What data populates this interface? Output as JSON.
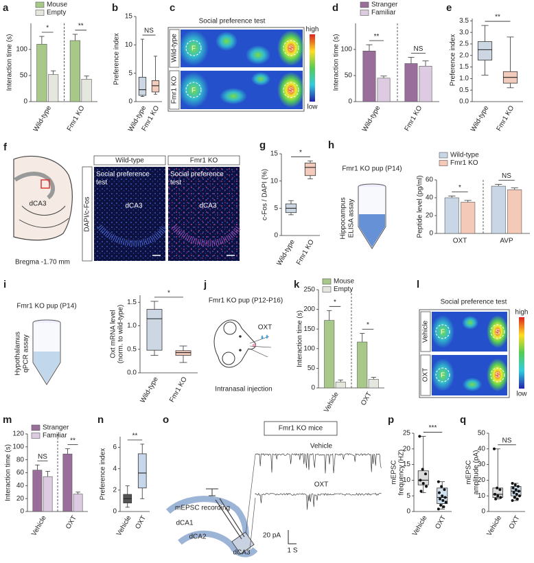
{
  "chart_data": [
    {
      "label": "a",
      "type": "bar",
      "ylabel": "Interaction time (s)",
      "categories": [
        "Wild-type",
        "Fmr1 KO"
      ],
      "series": [
        {
          "name": "Mouse",
          "color": "#a8c889",
          "values": [
            110,
            117
          ],
          "errors": [
            15,
            12
          ]
        },
        {
          "name": "Empty",
          "color": "#e4e7dd",
          "values": [
            52,
            43
          ],
          "errors": [
            7,
            6
          ]
        }
      ],
      "ylim": [
        0,
        150
      ],
      "yticks": [
        0,
        50,
        100
      ],
      "legend": "top-left",
      "separator": true,
      "annotations": [
        "*",
        "**"
      ]
    },
    {
      "label": "b",
      "type": "box",
      "ylabel": "Preference index",
      "categories": [
        "Wild-type",
        "Fmr1 KO"
      ],
      "boxes": [
        {
          "min": 0.9,
          "q1": 1.1,
          "median": 2.1,
          "q3": 4.3,
          "max": 11
        },
        {
          "min": 1.3,
          "q1": 1.7,
          "median": 2.8,
          "q3": 3.7,
          "max": 8
        }
      ],
      "colors": [
        "#cdd7e3",
        "#f3cbbd"
      ],
      "ylim": [
        0,
        15
      ],
      "yticks": [
        0,
        5,
        10,
        15
      ],
      "annotations": [
        "NS"
      ]
    },
    {
      "label": "d",
      "type": "bar",
      "ylabel": "Interaction time (s)",
      "categories": [
        "Wild-type",
        "Fmr1 KO"
      ],
      "series": [
        {
          "name": "Stranger",
          "color": "#9a6e9b",
          "values": [
            97,
            73
          ],
          "errors": [
            12,
            12
          ]
        },
        {
          "name": "Familiar",
          "color": "#dccbe1",
          "values": [
            45,
            68
          ],
          "errors": [
            4,
            10
          ]
        }
      ],
      "ylim": [
        0,
        150
      ],
      "yticks": [
        0,
        50,
        100
      ],
      "legend": "top-left",
      "separator": true,
      "annotations": [
        "**",
        "NS"
      ]
    },
    {
      "label": "e",
      "type": "box",
      "ylabel": "Preference index",
      "categories": [
        "Wild-type",
        "Fmr1 KO"
      ],
      "boxes": [
        {
          "min": 1.15,
          "q1": 1.8,
          "median": 2.25,
          "q3": 2.6,
          "max": 3.3
        },
        {
          "min": 0.6,
          "q1": 0.8,
          "median": 1.05,
          "q3": 1.3,
          "max": 2.8
        }
      ],
      "colors": [
        "#cdd7e3",
        "#f3cbbd"
      ],
      "ylim": [
        0,
        3.6
      ],
      "yticks": [
        {
          "value": 0,
          "label": "0.0"
        },
        0.5,
        {
          "value": 1,
          "label": "1.0"
        },
        1.5,
        {
          "value": 2,
          "label": "2.0"
        },
        2.5,
        {
          "value": 3,
          "label": "3.0"
        },
        3.5
      ],
      "annotations": [
        "**"
      ]
    },
    {
      "label": "g",
      "type": "box",
      "ylabel": "c-Fos / DAPI (%)",
      "categories": [
        "Wild-type",
        "Fmr1 KO"
      ],
      "boxes": [
        {
          "min": 3.8,
          "q1": 4.2,
          "median": 5,
          "q3": 5.8,
          "max": 6.4
        },
        {
          "min": 10.4,
          "q1": 11,
          "median": 12.5,
          "q3": 13.3,
          "max": 13.7
        }
      ],
      "colors": [
        "#cdd7e3",
        "#f3cbbd"
      ],
      "ylim": [
        0,
        15
      ],
      "yticks": [
        0,
        5,
        10,
        15
      ],
      "annotations": [
        "*"
      ]
    },
    {
      "label": "h",
      "type": "bar",
      "ylabel": "Peptide level (pg/ml)",
      "categories": [
        "OXT",
        "AVP"
      ],
      "series": [
        {
          "name": "Wild-type",
          "color": "#c8d6e6",
          "values": [
            40,
            53
          ],
          "errors": [
            2,
            2
          ]
        },
        {
          "name": "Fmr1 KO",
          "color": "#f4c9b7",
          "values": [
            35,
            49
          ],
          "errors": [
            2,
            2
          ]
        }
      ],
      "ylim": [
        0,
        60
      ],
      "yticks": [
        0,
        20,
        40,
        60
      ],
      "legend": "top",
      "separator": true,
      "annotations": [
        "*",
        "NS"
      ]
    },
    {
      "label": "i",
      "type": "box",
      "ylabel": [
        "Oxt mRNA level",
        "(norm. to wild-type)"
      ],
      "categories": [
        "Wild-type",
        "Fmr1 KO"
      ],
      "boxes": [
        {
          "min": 0.37,
          "q1": 0.48,
          "median": 1.15,
          "q3": 1.35,
          "max": 1.52
        },
        {
          "min": 0.22,
          "q1": 0.37,
          "median": 0.43,
          "q3": 0.47,
          "max": 0.57
        }
      ],
      "colors": [
        "#cdd7e3",
        "#f3cbbd"
      ],
      "ylim": [
        0,
        1.65
      ],
      "yticks": [
        {
          "value": 0,
          "label": "0.0"
        },
        0.5,
        {
          "value": 1,
          "label": "1.0"
        },
        1.5
      ],
      "annotations": [
        "*"
      ]
    },
    {
      "label": "k",
      "type": "bar",
      "ylabel": "Interaction time (s)",
      "categories": [
        "Vehicle",
        "OXT"
      ],
      "series": [
        {
          "name": "Mouse",
          "color": "#a8c889",
          "values": [
            172,
            117
          ],
          "errors": [
            25,
            22
          ]
        },
        {
          "name": "Empty",
          "color": "#e4e7dd",
          "values": [
            15,
            22
          ],
          "errors": [
            5,
            5
          ]
        }
      ],
      "ylim": [
        0,
        250
      ],
      "yticks": [
        0,
        50,
        100,
        150,
        200,
        250
      ],
      "legend": "top-left",
      "separator": true,
      "annotations": [
        "*",
        "*"
      ]
    },
    {
      "label": "m",
      "type": "bar",
      "ylabel": "Interaction time (s)",
      "categories": [
        "Vehicle",
        "OXT"
      ],
      "series": [
        {
          "name": "Stranger",
          "color": "#9a6e9b",
          "values": [
            64,
            89
          ],
          "errors": [
            8,
            8
          ]
        },
        {
          "name": "Familiar",
          "color": "#dccbe1",
          "values": [
            54,
            27
          ],
          "errors": [
            8,
            3
          ]
        }
      ],
      "ylim": [
        0,
        120
      ],
      "yticks": [
        0,
        20,
        40,
        60,
        80,
        100,
        120
      ],
      "legend": "top-left",
      "separator": true,
      "annotations": [
        "NS",
        "**"
      ]
    },
    {
      "label": "n",
      "type": "box",
      "ylabel": "Preference index",
      "categories": [
        "Vehicle",
        "OXT"
      ],
      "boxes": [
        {
          "min": 0.4,
          "q1": 0.8,
          "median": 1.2,
          "q3": 1.6,
          "max": 2.4
        },
        {
          "min": 1.2,
          "q1": 2.2,
          "median": 3.6,
          "q3": 5.4,
          "max": 6.3
        }
      ],
      "colors": [
        "#555555",
        "#c6d7ec"
      ],
      "ylim": [
        0,
        7
      ],
      "yticks": [
        0,
        2,
        4,
        6
      ],
      "annotations": [
        "**"
      ]
    },
    {
      "label": "p",
      "type": "box",
      "ylabel": [
        "mEPSC",
        "frequency (HZ)"
      ],
      "categories": [
        "Vehicle",
        "OXT"
      ],
      "boxes": [
        {
          "min": 6,
          "q1": 8.5,
          "median": 10,
          "q3": 13,
          "max": 24
        },
        {
          "min": 0.8,
          "q1": 2.5,
          "median": 4.5,
          "q3": 7.5,
          "max": 9.5
        }
      ],
      "points": [
        [
          24,
          13.5,
          12,
          10,
          9,
          8,
          6.5
        ],
        [
          9.5,
          8,
          7,
          6,
          5,
          4.5,
          4,
          3.5,
          3,
          2,
          1.5,
          0.8
        ]
      ],
      "colors": [
        "#dcdcdc",
        "#cfe0ef"
      ],
      "ylim": [
        0,
        25
      ],
      "yticks": [
        0,
        5,
        10,
        15,
        20,
        25
      ],
      "annotations": [
        "***"
      ]
    },
    {
      "label": "q",
      "type": "box",
      "ylabel": [
        "mEPSC",
        "amplitude (pA)"
      ],
      "categories": [
        "Vehicle",
        "OXT"
      ],
      "boxes": [
        {
          "min": 8,
          "q1": 9,
          "median": 11,
          "q3": 15,
          "max": 40
        },
        {
          "min": 7,
          "q1": 10,
          "median": 13,
          "q3": 16,
          "max": 18
        }
      ],
      "points": [
        [
          40,
          15,
          14,
          11,
          10,
          9,
          8
        ],
        [
          18,
          17,
          16,
          15,
          14,
          13,
          12,
          11,
          10,
          9,
          8,
          7
        ]
      ],
      "colors": [
        "#dcdcdc",
        "#cfe0ef"
      ],
      "ylim": [
        0,
        50
      ],
      "yticks": [
        0,
        10,
        20,
        30,
        40,
        50
      ],
      "annotations": [
        "NS"
      ]
    }
  ],
  "panels": {
    "c": {
      "label": "c",
      "title": "Social preference test",
      "rows": [
        "Wild-type",
        "Fmr1 KO"
      ],
      "left_chamber": "F",
      "right_chamber": "S",
      "scale_high": "high",
      "scale_low": "low"
    },
    "f": {
      "label": "f",
      "region": "dCA3",
      "bregma": "Bregma -1.70 mm",
      "groups": [
        "Wild-type",
        "Fmr1 KO"
      ],
      "stain": "DAPI/c-Fos",
      "condition": [
        "Social preference",
        "test"
      ]
    },
    "h": {
      "subject": "Fmr1 KO pup (P14)",
      "method": [
        "Hippocampus",
        "ELISA assay"
      ]
    },
    "i": {
      "subject": "Fmr1 KO pup (P14)",
      "method": [
        "Hypothalamus",
        "qPCR assay"
      ]
    },
    "j": {
      "label": "j",
      "subject": "Fmr1 KO pup (P12-P16)",
      "drug": "OXT",
      "route": "Intranasal injection"
    },
    "l": {
      "label": "l",
      "title": "Social preference test",
      "rows": [
        "Vehicle",
        "OXT"
      ],
      "left_chamber": "F",
      "right_chamber": "S",
      "scale_high": "high",
      "scale_low": "low"
    },
    "o": {
      "label": "o",
      "recording": "mEPSC recording",
      "regions": [
        "dCA1",
        "dCA2",
        "dCA3"
      ],
      "mice": "Fmr1 KO mice",
      "traces": [
        "Vehicle",
        "OXT"
      ],
      "scale_y": "20 pA",
      "scale_x": "1 S"
    }
  }
}
